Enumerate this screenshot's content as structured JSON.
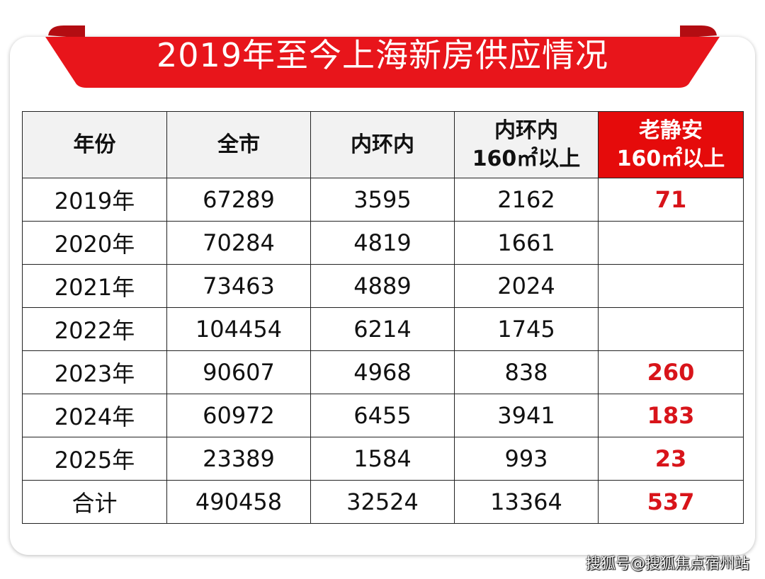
{
  "title": "2019年至今上海新房供应情况",
  "colors": {
    "banner_red": "#e8151b",
    "highlight_header_bg": "#e50b0b",
    "highlight_value_text": "#d8141a",
    "header_bg": "#f2f2f2"
  },
  "table": {
    "headers": [
      {
        "line1": "年份",
        "line2": ""
      },
      {
        "line1": "全市",
        "line2": ""
      },
      {
        "line1": "内环内",
        "line2": ""
      },
      {
        "line1": "内环内",
        "line2": "160㎡以上"
      },
      {
        "line1": "老静安",
        "line2": "160㎡以上"
      }
    ],
    "rows": [
      [
        "2019年",
        "67289",
        "3595",
        "2162",
        "71"
      ],
      [
        "2020年",
        "70284",
        "4819",
        "1661",
        ""
      ],
      [
        "2021年",
        "73463",
        "4889",
        "2024",
        ""
      ],
      [
        "2022年",
        "104454",
        "6214",
        "1745",
        ""
      ],
      [
        "2023年",
        "90607",
        "4968",
        "838",
        "260"
      ],
      [
        "2024年",
        "60972",
        "6455",
        "3941",
        "183"
      ],
      [
        "2025年",
        "23389",
        "1584",
        "993",
        "23"
      ],
      [
        "合计",
        "490458",
        "32524",
        "13364",
        "537"
      ]
    ]
  },
  "watermark": "搜狐号@搜狐焦点宿州站"
}
